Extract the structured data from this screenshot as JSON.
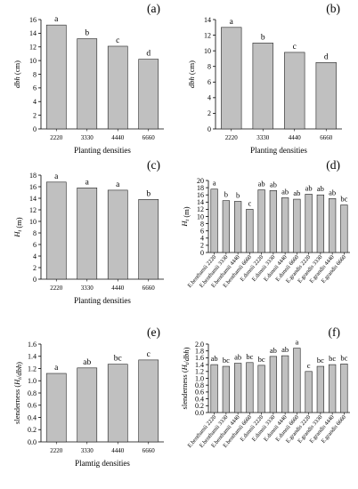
{
  "chart_data": [
    {
      "id": "panel_a",
      "panel_label": "(a)",
      "type": "bar",
      "categories": [
        "2220",
        "3330",
        "4440",
        "6660"
      ],
      "values": [
        15.2,
        13.2,
        12.1,
        10.2
      ],
      "letters": [
        "a",
        "b",
        "c",
        "d"
      ],
      "ylabel": "dbh (cm)",
      "xlabel": "Planting densities",
      "ylim": [
        0,
        16
      ],
      "yticks": [
        0,
        2,
        4,
        6,
        8,
        10,
        12,
        14,
        16
      ],
      "grid": false,
      "bar_color": "#c0c0c0"
    },
    {
      "id": "panel_b",
      "panel_label": "(b)",
      "type": "bar",
      "categories": [
        "2220",
        "3330",
        "4440",
        "6660"
      ],
      "values": [
        13.0,
        11.0,
        9.8,
        8.5
      ],
      "letters": [
        "a",
        "b",
        "c",
        "d"
      ],
      "ylabel": "dbh (cm)",
      "xlabel": "Planting densities",
      "ylim": [
        0,
        14
      ],
      "yticks": [
        0,
        2,
        4,
        6,
        8,
        10,
        12,
        14
      ],
      "grid": false,
      "bar_color": "#c0c0c0"
    },
    {
      "id": "panel_c",
      "panel_label": "(c)",
      "type": "bar",
      "categories": [
        "2220",
        "3330",
        "4440",
        "6660"
      ],
      "values": [
        16.8,
        15.8,
        15.4,
        13.8
      ],
      "letters": [
        "a",
        "a",
        "a",
        "b"
      ],
      "ylabel": "Ht (m)",
      "xlabel": "Planting densities",
      "ylim": [
        0,
        18
      ],
      "yticks": [
        0,
        2,
        4,
        6,
        8,
        10,
        12,
        14,
        16,
        18
      ],
      "grid": false,
      "bar_color": "#c0c0c0"
    },
    {
      "id": "panel_d",
      "panel_label": "(d)",
      "type": "bar",
      "categories": [
        "E.benthamii 2220",
        "E.benthamii 3330",
        "E.benthamii 4440",
        "E.benthamii 6660",
        "E.dunnii 2220",
        "E.dunnii 3330",
        "E.dunnii 4440",
        "E.dunnii 6660",
        "E.grandis 2220",
        "E.grandis 3330",
        "E.grandis 4440",
        "E.grandis 6660"
      ],
      "values": [
        17.6,
        14.4,
        14.2,
        12.0,
        17.4,
        17.2,
        15.2,
        14.8,
        16.2,
        16.0,
        15.0,
        13.2
      ],
      "letters": [
        "a",
        "b",
        "b",
        "c",
        "ab",
        "ab",
        "ab",
        "ab",
        "ab",
        "ab",
        "ab",
        "bc"
      ],
      "ylabel": "Ht (m)",
      "xlabel": "",
      "ylim": [
        0,
        20
      ],
      "yticks": [
        0,
        2,
        4,
        6,
        8,
        10,
        12,
        14,
        16,
        18,
        20
      ],
      "grid": false,
      "bar_color": "#c0c0c0"
    },
    {
      "id": "panel_e",
      "panel_label": "(e)",
      "type": "bar",
      "categories": [
        "2220",
        "3330",
        "4440",
        "6660"
      ],
      "values": [
        1.12,
        1.21,
        1.27,
        1.34
      ],
      "letters": [
        "a",
        "ab",
        "bc",
        "c"
      ],
      "ylabel": "slenderness (Ht/dbh)",
      "xlabel": "Plamtig densities",
      "ylim": [
        0,
        1.6
      ],
      "yticks": [
        0,
        0.2,
        0.4,
        0.6,
        0.8,
        1.0,
        1.2,
        1.4,
        1.6
      ],
      "grid": false,
      "bar_color": "#c0c0c0"
    },
    {
      "id": "panel_f",
      "panel_label": "(f)",
      "type": "bar",
      "categories": [
        "E.benthamii 2220",
        "E.benthamii 3330",
        "E.benthamii 4440",
        "E.benthamii 6660",
        "E.dunnii 2220",
        "E.dunnii 3330",
        "E.dunnii 4440",
        "E.dunnii 6660",
        "E.grandis 2220",
        "E.grandis 3330",
        "E.grandis 4440",
        "E.grandis 6660"
      ],
      "values": [
        1.4,
        1.35,
        1.44,
        1.46,
        1.38,
        1.64,
        1.66,
        1.88,
        1.2,
        1.35,
        1.4,
        1.42
      ],
      "letters": [
        "ab",
        "bc",
        "ab",
        "bc",
        "bc",
        "ab",
        "ab",
        "a",
        "c",
        "bc",
        "bc",
        "bc"
      ],
      "ylabel": "slenderness (Ht/dbh)",
      "xlabel": "",
      "ylim": [
        0,
        2.0
      ],
      "yticks": [
        0,
        0.2,
        0.4,
        0.6,
        0.8,
        1.0,
        1.2,
        1.4,
        1.6,
        1.8,
        2.0
      ],
      "grid": false,
      "bar_color": "#c0c0c0"
    }
  ]
}
